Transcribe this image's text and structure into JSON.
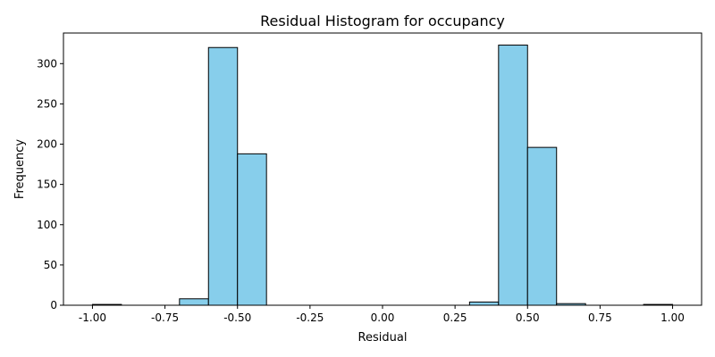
{
  "chart_data": {
    "type": "bar",
    "title": "Residual Histogram for occupancy",
    "xlabel": "Residual",
    "ylabel": "Frequency",
    "xlim": [
      -1.1,
      1.1
    ],
    "ylim": [
      0,
      338
    ],
    "xticks": [
      "-1.00",
      "-0.75",
      "-0.50",
      "-0.25",
      "0.00",
      "0.25",
      "0.50",
      "0.75",
      "1.00"
    ],
    "yticks": [
      "0",
      "50",
      "100",
      "150",
      "200",
      "250",
      "300"
    ],
    "bin_edges": [
      -1.0,
      -0.9,
      -0.8,
      -0.7,
      -0.6,
      -0.5,
      -0.4,
      -0.3,
      -0.2,
      -0.1,
      0.0,
      0.1,
      0.2,
      0.3,
      0.4,
      0.5,
      0.6,
      0.7,
      0.8,
      0.9,
      1.0
    ],
    "values": [
      1,
      0,
      0,
      8,
      320,
      188,
      0,
      0,
      0,
      0,
      0,
      0,
      0,
      4,
      323,
      196,
      2,
      0,
      0,
      1
    ],
    "bar_color": "#87ceeb",
    "edge_color": "#000000",
    "grid": false,
    "legend": false
  }
}
